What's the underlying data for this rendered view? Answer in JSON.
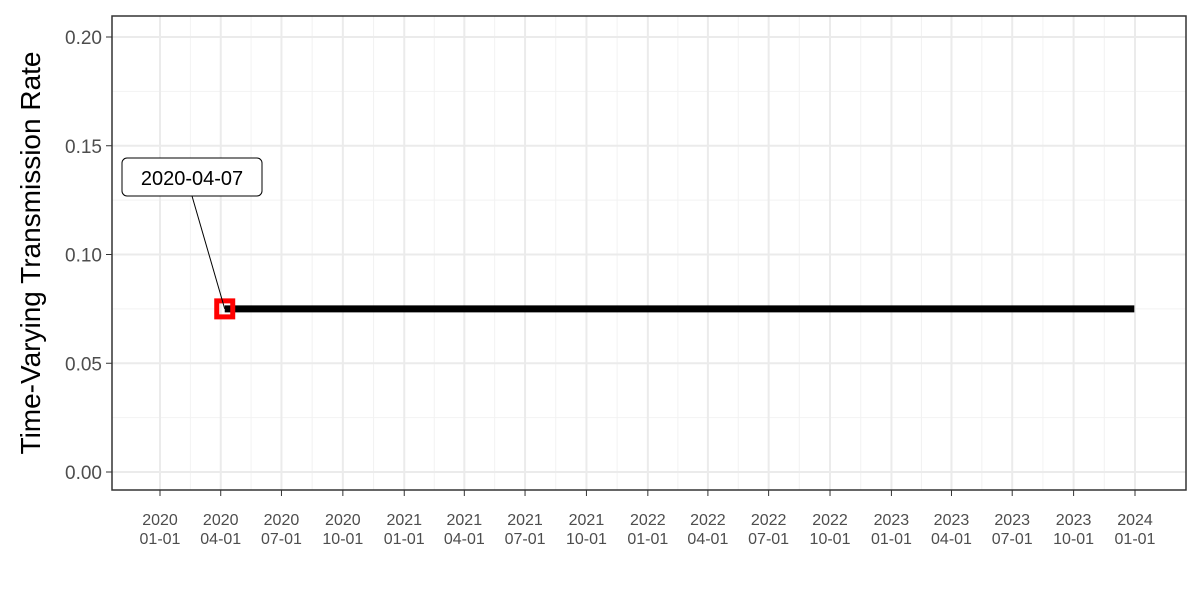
{
  "chart_data": {
    "type": "line",
    "title": "",
    "xlabel": "",
    "ylabel": "Time-Varying Transmission Rate",
    "ylim": [
      0,
      0.2
    ],
    "xlim": [
      "2019-11-11",
      "2024-02-20"
    ],
    "y_ticks": [
      "0.00",
      "0.05",
      "0.10",
      "0.15",
      "0.20"
    ],
    "x_ticks": [
      {
        "date": "2020-01-01",
        "line1": "2020",
        "line2": "01-01"
      },
      {
        "date": "2020-04-01",
        "line1": "2020",
        "line2": "04-01"
      },
      {
        "date": "2020-07-01",
        "line1": "2020",
        "line2": "07-01"
      },
      {
        "date": "2020-10-01",
        "line1": "2020",
        "line2": "10-01"
      },
      {
        "date": "2021-01-01",
        "line1": "2021",
        "line2": "01-01"
      },
      {
        "date": "2021-04-01",
        "line1": "2021",
        "line2": "04-01"
      },
      {
        "date": "2021-07-01",
        "line1": "2021",
        "line2": "07-01"
      },
      {
        "date": "2021-10-01",
        "line1": "2021",
        "line2": "10-01"
      },
      {
        "date": "2022-01-01",
        "line1": "2022",
        "line2": "01-01"
      },
      {
        "date": "2022-04-01",
        "line1": "2022",
        "line2": "04-01"
      },
      {
        "date": "2022-07-01",
        "line1": "2022",
        "line2": "07-01"
      },
      {
        "date": "2022-10-01",
        "line1": "2022",
        "line2": "10-01"
      },
      {
        "date": "2023-01-01",
        "line1": "2023",
        "line2": "01-01"
      },
      {
        "date": "2023-04-01",
        "line1": "2023",
        "line2": "04-01"
      },
      {
        "date": "2023-07-01",
        "line1": "2023",
        "line2": "07-01"
      },
      {
        "date": "2023-10-01",
        "line1": "2023",
        "line2": "10-01"
      },
      {
        "date": "2024-01-01",
        "line1": "2024",
        "line2": "01-01"
      }
    ],
    "series": [
      {
        "x": [
          "2020-04-07",
          "2023-12-31"
        ],
        "y": [
          0.075,
          0.075
        ],
        "color": "#000000"
      }
    ],
    "highlight_point": {
      "x": "2020-04-07",
      "y": 0.075,
      "color": "#ff0000"
    },
    "annotation": {
      "text": "2020-04-07",
      "x": "2020-04-07",
      "y": 0.075
    },
    "grid": true,
    "legend": "none"
  }
}
